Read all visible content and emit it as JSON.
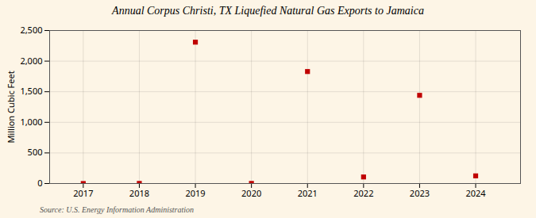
{
  "chart_data": {
    "type": "scatter",
    "title": "Annual Corpus Christi, TX Liquefied Natural Gas Exports to Jamaica",
    "ylabel": "Million Cubic Feet",
    "source": "Source: U.S. Energy Information Administration",
    "x": [
      2017,
      2018,
      2019,
      2020,
      2021,
      2022,
      2023,
      2024
    ],
    "values": [
      0,
      2,
      2310,
      2,
      1830,
      107,
      1441,
      125
    ],
    "color": "#c00000",
    "marker": "square",
    "xlim": [
      2016.4,
      2024.8
    ],
    "xticks": [
      2017,
      2018,
      2019,
      2020,
      2021,
      2022,
      2023,
      2024
    ],
    "ylim": [
      0,
      2500
    ],
    "yticks": [
      0,
      500,
      {
        "value": 1000,
        "label": "1,000"
      },
      {
        "value": 1500,
        "label": "1,500"
      },
      {
        "value": 2000,
        "label": "2,000"
      },
      {
        "value": 2500,
        "label": "2,500"
      }
    ],
    "grid": true
  }
}
